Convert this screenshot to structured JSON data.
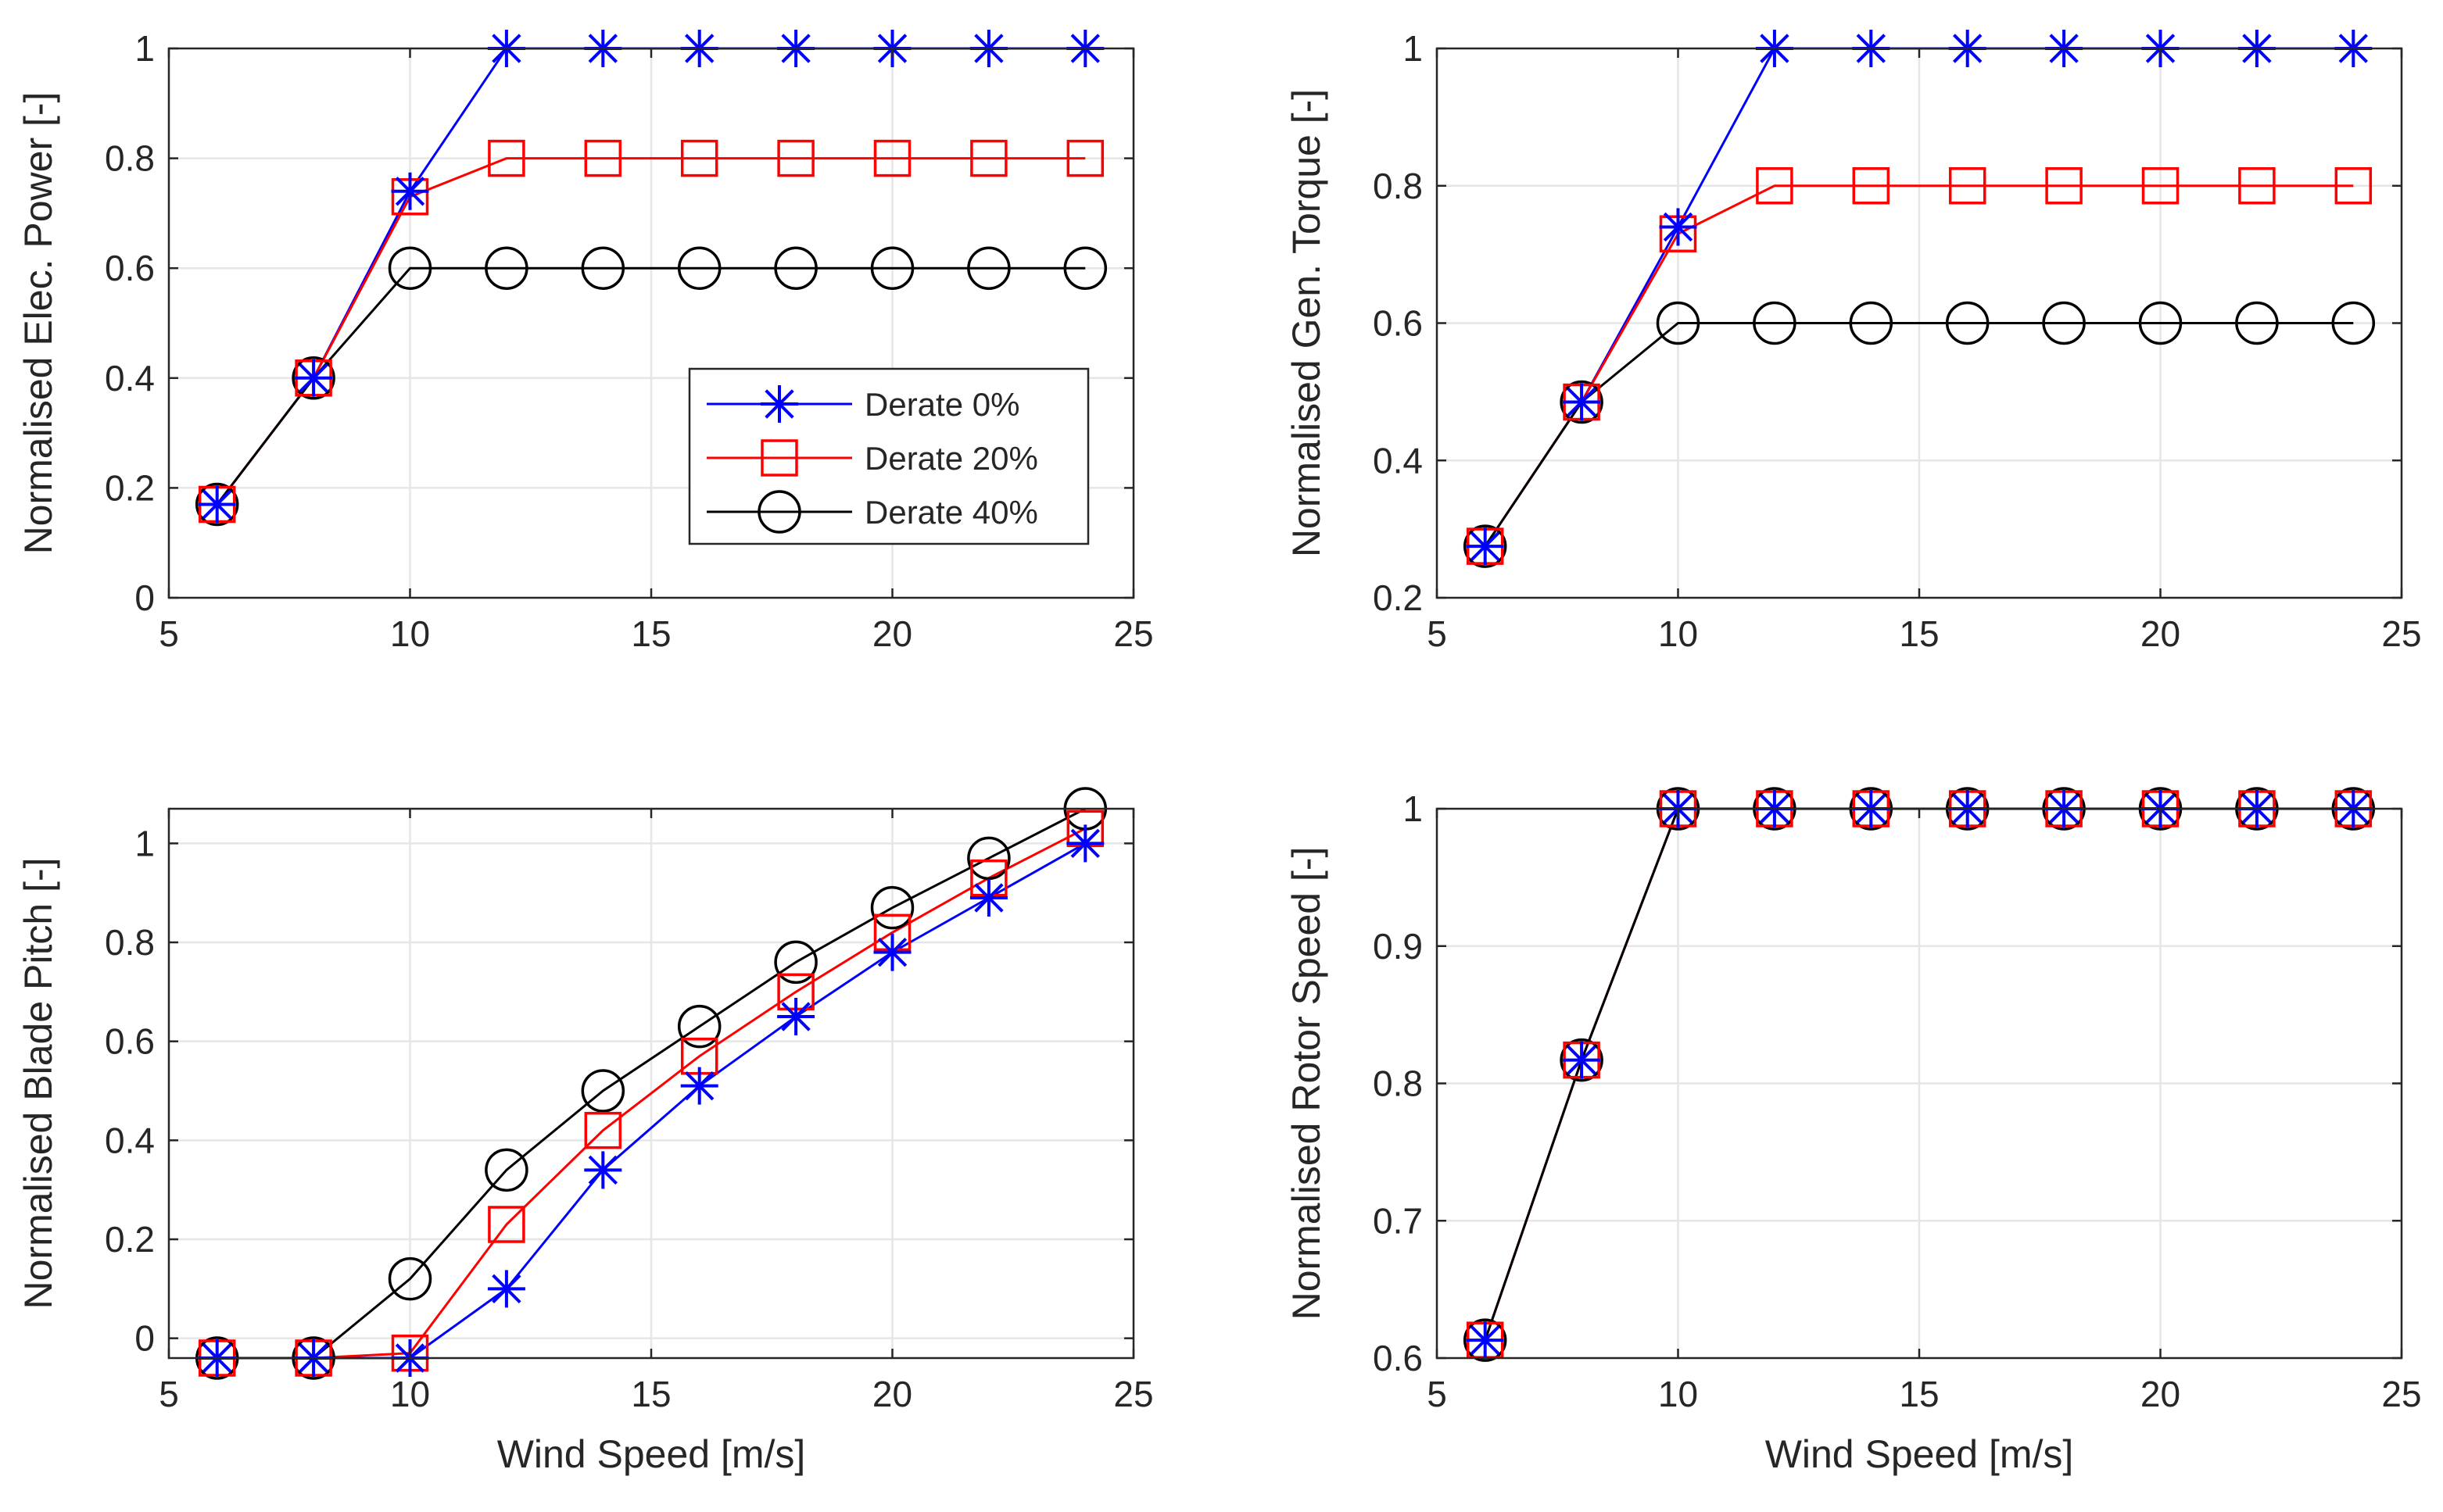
{
  "colors": {
    "series": [
      "#0000ff",
      "#ff0000",
      "#000000"
    ],
    "grid": "#e6e6e6",
    "axis": "#262626"
  },
  "legend": {
    "entries": [
      "Derate 0%",
      "Derate 20%",
      "Derate 40%"
    ],
    "markers": [
      "asterisk",
      "square",
      "circle"
    ]
  },
  "chart_data": [
    {
      "type": "line",
      "ylabel": "Normalised Elec. Power [-]",
      "xlabel": "",
      "xlim": [
        5,
        25
      ],
      "ylim": [
        0,
        1
      ],
      "xticks": [
        5,
        10,
        15,
        20,
        25
      ],
      "yticks": [
        0,
        0.2,
        0.4,
        0.6,
        0.8,
        1
      ],
      "xtick_labels": [
        "5",
        "10",
        "15",
        "20",
        "25"
      ],
      "ytick_labels": [
        "0",
        "0.2",
        "0.4",
        "0.6",
        "0.8",
        "1"
      ],
      "grid": true,
      "legend_position": "lower-right",
      "x": [
        6,
        8,
        10,
        12,
        14,
        16,
        18,
        20,
        22,
        24
      ],
      "series": [
        {
          "name": "Derate 0%",
          "values": [
            0.17,
            0.4,
            0.74,
            1,
            1,
            1,
            1,
            1,
            1,
            1
          ]
        },
        {
          "name": "Derate 20%",
          "values": [
            0.17,
            0.4,
            0.73,
            0.8,
            0.8,
            0.8,
            0.8,
            0.8,
            0.8,
            0.8
          ]
        },
        {
          "name": "Derate 40%",
          "values": [
            0.17,
            0.4,
            0.6,
            0.6,
            0.6,
            0.6,
            0.6,
            0.6,
            0.6,
            0.6
          ]
        }
      ]
    },
    {
      "type": "line",
      "ylabel": "Normalised Gen. Torque [-]",
      "xlabel": "",
      "xlim": [
        5,
        25
      ],
      "ylim": [
        0.2,
        1
      ],
      "xticks": [
        5,
        10,
        15,
        20,
        25
      ],
      "yticks": [
        0.2,
        0.4,
        0.6,
        0.8,
        1
      ],
      "xtick_labels": [
        "5",
        "10",
        "15",
        "20",
        "25"
      ],
      "ytick_labels": [
        "0.2",
        "0.4",
        "0.6",
        "0.8",
        "1"
      ],
      "grid": true,
      "x": [
        6,
        8,
        10,
        12,
        14,
        16,
        18,
        20,
        22,
        24
      ],
      "series": [
        {
          "name": "Derate 0%",
          "values": [
            0.275,
            0.485,
            0.74,
            1,
            1,
            1,
            1,
            1,
            1,
            1
          ]
        },
        {
          "name": "Derate 20%",
          "values": [
            0.275,
            0.485,
            0.73,
            0.8,
            0.8,
            0.8,
            0.8,
            0.8,
            0.8,
            0.8
          ]
        },
        {
          "name": "Derate 40%",
          "values": [
            0.275,
            0.485,
            0.6,
            0.6,
            0.6,
            0.6,
            0.6,
            0.6,
            0.6,
            0.6
          ]
        }
      ]
    },
    {
      "type": "line",
      "ylabel": "Normalised Blade Pitch [-]",
      "xlabel": "Wind Speed [m/s]",
      "xlim": [
        5,
        25
      ],
      "ylim": [
        -0.04,
        1.07
      ],
      "xticks": [
        5,
        10,
        15,
        20,
        25
      ],
      "yticks": [
        0,
        0.2,
        0.4,
        0.6,
        0.8,
        1
      ],
      "xtick_labels": [
        "5",
        "10",
        "15",
        "20",
        "25"
      ],
      "ytick_labels": [
        "0",
        "0.2",
        "0.4",
        "0.6",
        "0.8",
        "1"
      ],
      "grid": true,
      "x": [
        6,
        8,
        10,
        12,
        14,
        16,
        18,
        20,
        22,
        24
      ],
      "series": [
        {
          "name": "Derate 0%",
          "values": [
            -0.04,
            -0.04,
            -0.04,
            0.1,
            0.34,
            0.51,
            0.65,
            0.78,
            0.89,
            1.0
          ]
        },
        {
          "name": "Derate 20%",
          "values": [
            -0.04,
            -0.04,
            -0.03,
            0.23,
            0.42,
            0.57,
            0.7,
            0.82,
            0.93,
            1.03
          ]
        },
        {
          "name": "Derate 40%",
          "values": [
            -0.04,
            -0.04,
            0.12,
            0.34,
            0.5,
            0.63,
            0.76,
            0.87,
            0.97,
            1.07
          ]
        }
      ]
    },
    {
      "type": "line",
      "ylabel": "Normalised Rotor Speed [-]",
      "xlabel": "Wind Speed [m/s]",
      "xlim": [
        5,
        25
      ],
      "ylim": [
        0.6,
        1
      ],
      "xticks": [
        5,
        10,
        15,
        20,
        25
      ],
      "yticks": [
        0.6,
        0.7,
        0.8,
        0.9,
        1
      ],
      "xtick_labels": [
        "5",
        "10",
        "15",
        "20",
        "25"
      ],
      "ytick_labels": [
        "0.6",
        "0.7",
        "0.8",
        "0.9",
        "1"
      ],
      "grid": true,
      "x": [
        6,
        8,
        10,
        12,
        14,
        16,
        18,
        20,
        22,
        24
      ],
      "series": [
        {
          "name": "Derate 0%",
          "values": [
            0.613,
            0.817,
            1,
            1,
            1,
            1,
            1,
            1,
            1,
            1
          ]
        },
        {
          "name": "Derate 20%",
          "values": [
            0.613,
            0.817,
            1,
            1,
            1,
            1,
            1,
            1,
            1,
            1
          ]
        },
        {
          "name": "Derate 40%",
          "values": [
            0.613,
            0.817,
            1,
            1,
            1,
            1,
            1,
            1,
            1,
            1
          ]
        }
      ]
    }
  ]
}
